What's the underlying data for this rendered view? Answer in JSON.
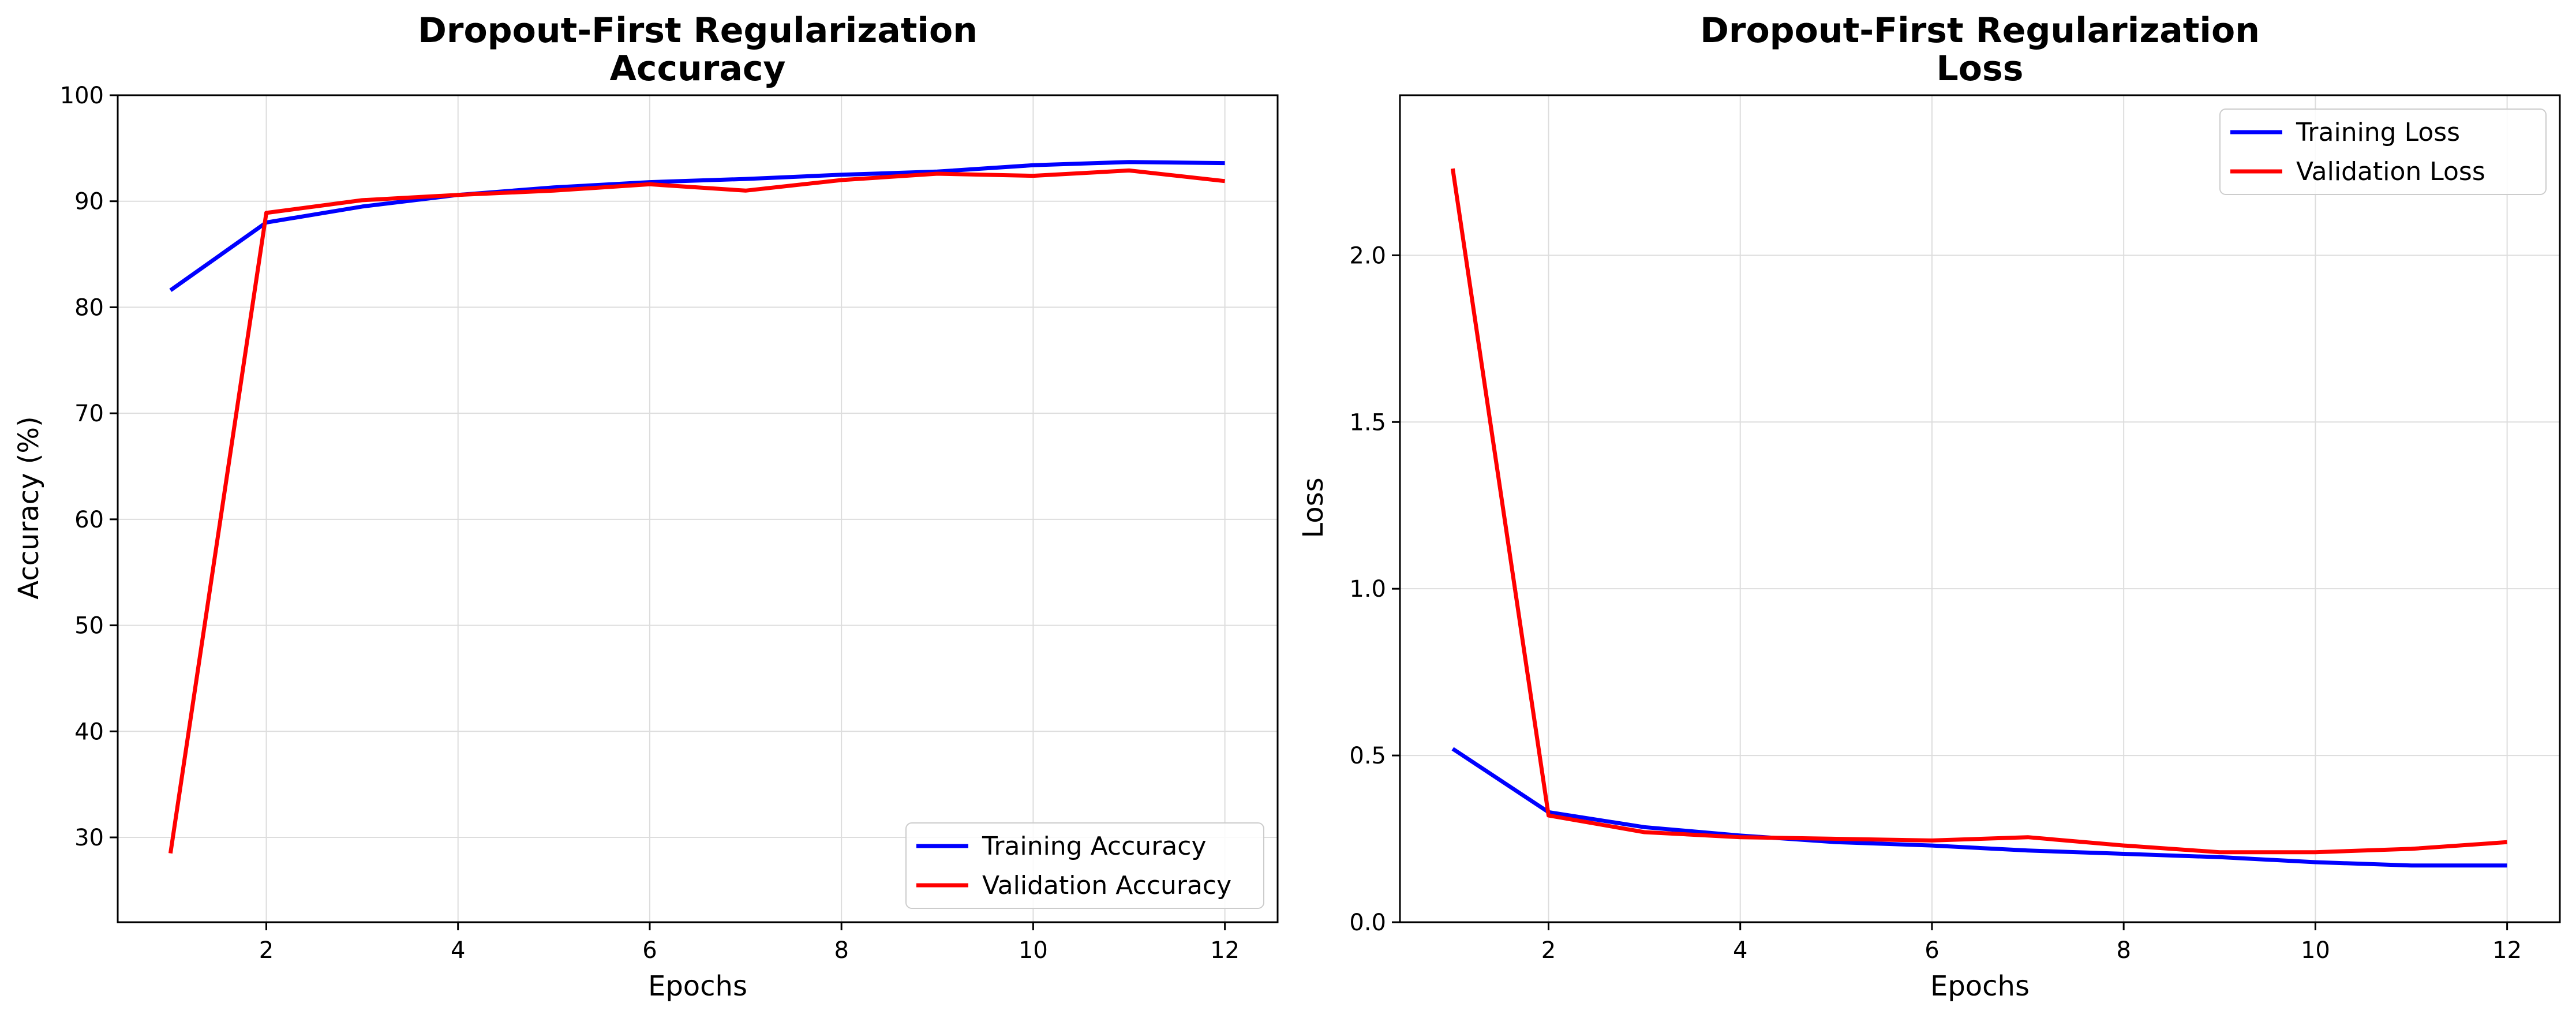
{
  "chart_data": [
    {
      "type": "line",
      "title_lines": [
        "Dropout-First Regularization",
        "Accuracy"
      ],
      "xlabel": "Epochs",
      "ylabel": "Accuracy (%)",
      "xlim": [
        0.45,
        12.55
      ],
      "ylim": [
        22,
        100
      ],
      "xticks": [
        2,
        4,
        6,
        8,
        10,
        12
      ],
      "yticks": [
        30,
        40,
        50,
        60,
        70,
        80,
        90,
        100
      ],
      "grid": true,
      "legend_position": "lower-right",
      "x": [
        1,
        2,
        3,
        4,
        5,
        6,
        7,
        8,
        9,
        10,
        11,
        12
      ],
      "series": [
        {
          "name": "Training Accuracy",
          "color": "#0000ff",
          "values": [
            81.6,
            88.0,
            89.5,
            90.6,
            91.3,
            91.8,
            92.1,
            92.5,
            92.8,
            93.4,
            93.7,
            93.6
          ]
        },
        {
          "name": "Validation Accuracy",
          "color": "#ff0000",
          "values": [
            28.5,
            88.9,
            90.1,
            90.6,
            91.0,
            91.6,
            91.0,
            92.0,
            92.6,
            92.4,
            92.9,
            91.9
          ]
        }
      ]
    },
    {
      "type": "line",
      "title_lines": [
        "Dropout-First Regularization",
        "Loss"
      ],
      "xlabel": "Epochs",
      "ylabel": "Loss",
      "xlim": [
        0.45,
        12.55
      ],
      "ylim": [
        0.0,
        2.48
      ],
      "xticks": [
        2,
        4,
        6,
        8,
        10,
        12
      ],
      "yticks": [
        0.0,
        0.5,
        1.0,
        1.5,
        2.0
      ],
      "grid": true,
      "legend_position": "upper-right",
      "x": [
        1,
        2,
        3,
        4,
        5,
        6,
        7,
        8,
        9,
        10,
        11,
        12
      ],
      "series": [
        {
          "name": "Training Loss",
          "color": "#0000ff",
          "values": [
            0.52,
            0.33,
            0.285,
            0.26,
            0.24,
            0.23,
            0.215,
            0.205,
            0.195,
            0.18,
            0.17,
            0.17
          ]
        },
        {
          "name": "Validation Loss",
          "color": "#ff0000",
          "values": [
            2.26,
            0.32,
            0.27,
            0.255,
            0.25,
            0.245,
            0.255,
            0.23,
            0.21,
            0.21,
            0.22,
            0.24
          ]
        }
      ]
    }
  ]
}
